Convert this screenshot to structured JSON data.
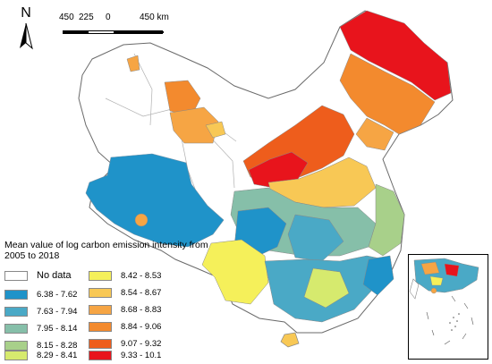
{
  "north_arrow": {
    "letter": "N"
  },
  "scale_bar": {
    "ticks": [
      "450",
      "225",
      "0",
      "450 km"
    ]
  },
  "legend": {
    "title": "Mean value of log carbon emission intensity from 2005 to 2018",
    "nodata": {
      "label": "No data",
      "color": "#ffffff"
    },
    "classes": [
      {
        "range": "6.38 - 7.62",
        "color": "#1f93c9"
      },
      {
        "range": "7.63 - 7.94",
        "color": "#4aa9c6"
      },
      {
        "range": "7.95 - 8.14",
        "color": "#86bfa9"
      },
      {
        "range": "8.15 - 8.28",
        "color": "#a8d08a"
      },
      {
        "range": "8.29 - 8.41",
        "color": "#d6ea6e"
      },
      {
        "range": "8.42 - 8.53",
        "color": "#f5f05a"
      },
      {
        "range": "8.54 - 8.67",
        "color": "#f8c855"
      },
      {
        "range": "8.68 - 8.83",
        "color": "#f6a544"
      },
      {
        "range": "8.84 - 9.06",
        "color": "#f38a2e"
      },
      {
        "range": "9.07 - 9.32",
        "color": "#ee5d1c"
      },
      {
        "range": "9.33 - 10.1",
        "color": "#e8141c"
      }
    ]
  }
}
